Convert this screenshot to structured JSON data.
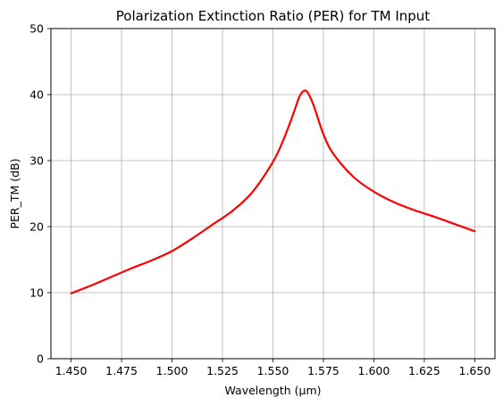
{
  "chart_data": {
    "type": "line",
    "title": "Polarization Extinction Ratio (PER) for TM Input",
    "xlabel": "Wavelength (µm)",
    "ylabel": "PER_TM (dB)",
    "xlim": [
      1.44,
      1.66
    ],
    "ylim": [
      0,
      50
    ],
    "grid": true,
    "xticks": [
      1.45,
      1.475,
      1.5,
      1.525,
      1.55,
      1.575,
      1.6,
      1.625,
      1.65
    ],
    "xtick_labels": [
      "1.450",
      "1.475",
      "1.500",
      "1.525",
      "1.550",
      "1.575",
      "1.600",
      "1.625",
      "1.650"
    ],
    "yticks": [
      0,
      10,
      20,
      30,
      40,
      50
    ],
    "ytick_labels": [
      "0",
      "10",
      "20",
      "30",
      "40",
      "50"
    ],
    "series": [
      {
        "color": "#ff0000",
        "x": [
          1.45,
          1.46,
          1.47,
          1.48,
          1.49,
          1.5,
          1.51,
          1.52,
          1.53,
          1.54,
          1.55,
          1.555,
          1.56,
          1.563,
          1.565,
          1.567,
          1.57,
          1.575,
          1.58,
          1.59,
          1.6,
          1.61,
          1.62,
          1.63,
          1.64,
          1.65
        ],
        "y": [
          9.9,
          11.1,
          12.4,
          13.7,
          14.9,
          16.3,
          18.2,
          20.3,
          22.4,
          25.3,
          29.8,
          33.0,
          37.0,
          39.6,
          40.5,
          40.4,
          38.5,
          34.0,
          31.0,
          27.5,
          25.3,
          23.7,
          22.5,
          21.5,
          20.4,
          19.3
        ]
      }
    ]
  }
}
